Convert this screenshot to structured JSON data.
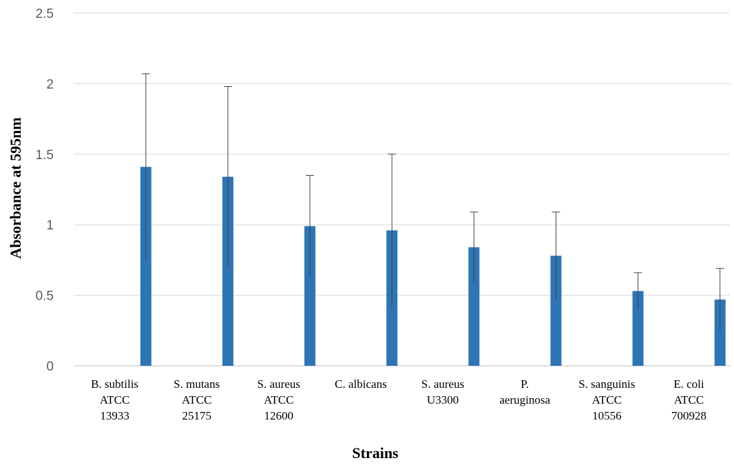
{
  "chart_data": {
    "type": "bar",
    "xlabel": "Strains",
    "ylabel": "Absorbance at 595nm",
    "ylim": [
      0,
      2.5
    ],
    "yticks": [
      "0",
      "0.5",
      "1",
      "1.5",
      "2",
      "2.5"
    ],
    "ytick_values": [
      0,
      0.5,
      1,
      1.5,
      2,
      2.5
    ],
    "grid": true,
    "bar_color": "#2e75b6",
    "categories": [
      [
        "B. subtilis",
        "ATCC",
        "13933"
      ],
      [
        "S. mutans",
        "ATCC",
        "25175"
      ],
      [
        "S. aureus",
        "ATCC",
        "12600"
      ],
      [
        "C. albicans"
      ],
      [
        "S. aureus",
        "U3300"
      ],
      [
        "P.",
        "aeruginosa"
      ],
      [
        "S. sanguinis",
        "ATCC",
        "10556"
      ],
      [
        "E. coli",
        "ATCC",
        "700928"
      ]
    ],
    "values": [
      1.41,
      1.34,
      0.99,
      0.96,
      0.84,
      0.78,
      0.53,
      0.47
    ],
    "error": [
      0.66,
      0.64,
      0.36,
      0.54,
      0.25,
      0.31,
      0.13,
      0.22
    ]
  }
}
